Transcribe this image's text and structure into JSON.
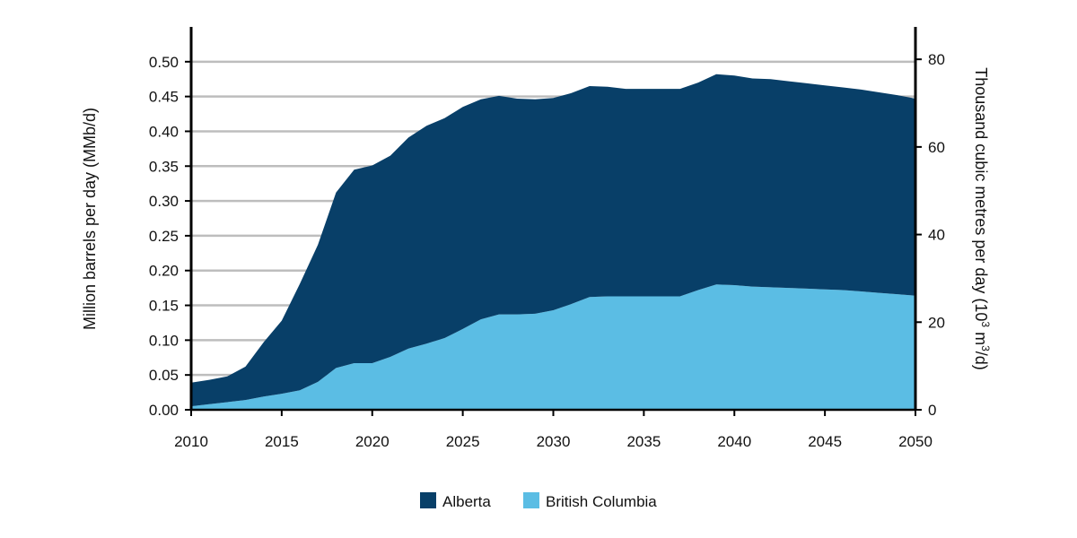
{
  "chart_data": {
    "type": "area",
    "stacked": true,
    "x": [
      2010,
      2011,
      2012,
      2013,
      2014,
      2015,
      2016,
      2017,
      2018,
      2019,
      2020,
      2021,
      2022,
      2023,
      2024,
      2025,
      2026,
      2027,
      2028,
      2029,
      2030,
      2031,
      2032,
      2033,
      2034,
      2035,
      2036,
      2037,
      2038,
      2039,
      2040,
      2041,
      2042,
      2043,
      2044,
      2045,
      2046,
      2047,
      2048,
      2049,
      2050
    ],
    "series": [
      {
        "name": "British Columbia",
        "color": "#5BBDE4",
        "values": [
          0.005,
          0.008,
          0.011,
          0.014,
          0.019,
          0.023,
          0.028,
          0.04,
          0.06,
          0.067,
          0.067,
          0.076,
          0.088,
          0.095,
          0.103,
          0.116,
          0.13,
          0.137,
          0.137,
          0.138,
          0.143,
          0.152,
          0.162,
          0.163,
          0.163,
          0.163,
          0.163,
          0.163,
          0.172,
          0.18,
          0.179,
          0.177,
          0.176,
          0.175,
          0.174,
          0.173,
          0.172,
          0.17,
          0.168,
          0.166,
          0.164
        ]
      },
      {
        "name": "Alberta",
        "color": "#083F68",
        "values": [
          0.034,
          0.035,
          0.037,
          0.048,
          0.078,
          0.105,
          0.153,
          0.197,
          0.252,
          0.278,
          0.284,
          0.289,
          0.303,
          0.313,
          0.316,
          0.319,
          0.316,
          0.314,
          0.31,
          0.308,
          0.305,
          0.303,
          0.303,
          0.301,
          0.298,
          0.298,
          0.298,
          0.298,
          0.298,
          0.302,
          0.301,
          0.299,
          0.299,
          0.297,
          0.295,
          0.293,
          0.291,
          0.29,
          0.288,
          0.286,
          0.283
        ]
      }
    ],
    "xlim": [
      2010,
      2050
    ],
    "xticks": [
      "2010",
      "2015",
      "2020",
      "2025",
      "2030",
      "2035",
      "2040",
      "2045",
      "2050"
    ],
    "ylim": [
      0,
      0.55
    ],
    "yticks": [
      "0.00",
      "0.05",
      "0.10",
      "0.15",
      "0.20",
      "0.25",
      "0.30",
      "0.35",
      "0.40",
      "0.45",
      "0.50"
    ],
    "y2lim": [
      0,
      87.4
    ],
    "y2ticks": [
      "0",
      "20",
      "40",
      "60",
      "80"
    ],
    "ylabel": "Million barrels per day (MMb/d)",
    "y2label": "Thousand cubic metres per day (10³ m³/d)",
    "grid": true,
    "legend_position": "bottom-center",
    "legend": [
      "Alberta",
      "British Columbia"
    ]
  }
}
